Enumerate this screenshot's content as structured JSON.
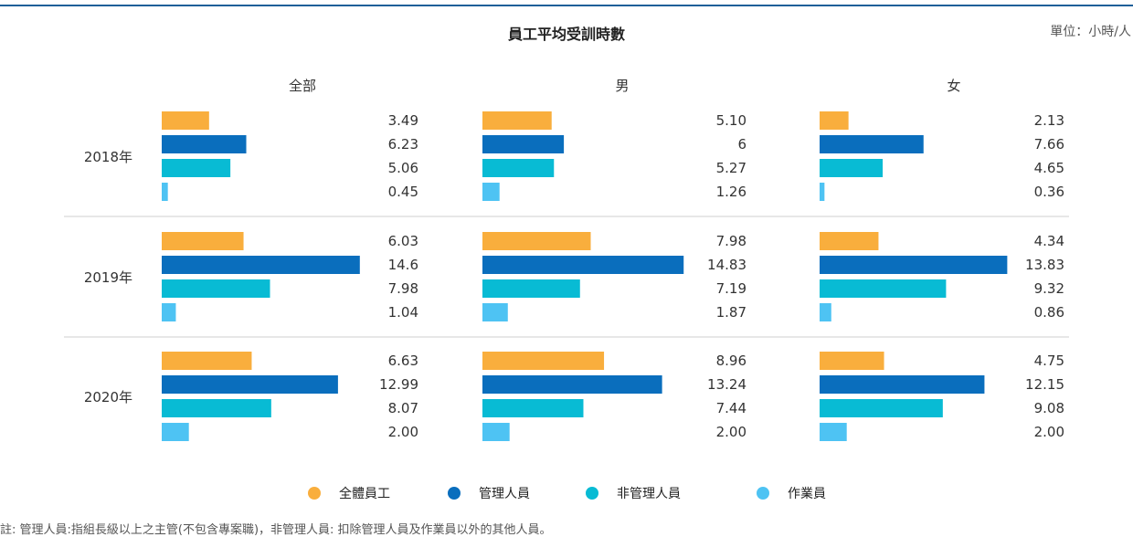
{
  "title": "員工平均受訓時數",
  "unit": "單位：小時/人",
  "footnote": "註: 管理人員:指組長級以上之主管(不包含專案職)，非管理人員: 扣除管理人員及作業員以外的其他人員。",
  "chart_data": {
    "type": "bar",
    "orientation": "horizontal",
    "title": "員工平均受訓時數",
    "unit": "單位：小時/人",
    "panels": [
      "全部",
      "男",
      "女"
    ],
    "groups": [
      "2018年",
      "2019年",
      "2020年"
    ],
    "series": [
      {
        "name": "全體員工",
        "color": "#F9AE3D",
        "labels": [
          [
            "3.49",
            "5.10",
            "2.13"
          ],
          [
            "6.03",
            "7.98",
            "4.34"
          ],
          [
            "6.63",
            "8.96",
            "4.75"
          ]
        ],
        "values": [
          [
            3.49,
            5.1,
            2.13
          ],
          [
            6.03,
            7.98,
            4.34
          ],
          [
            6.63,
            8.96,
            4.75
          ]
        ]
      },
      {
        "name": "管理人員",
        "color": "#0A6EBD",
        "labels": [
          [
            "6.23",
            "6",
            "7.66"
          ],
          [
            "14.6",
            "14.83",
            "13.83"
          ],
          [
            "12.99",
            "13.24",
            "12.15"
          ]
        ],
        "values": [
          [
            6.23,
            6,
            7.66
          ],
          [
            14.6,
            14.83,
            13.83
          ],
          [
            12.99,
            13.24,
            12.15
          ]
        ]
      },
      {
        "name": "非管理人員",
        "color": "#08BBD4",
        "labels": [
          [
            "5.06",
            "5.27",
            "4.65"
          ],
          [
            "7.98",
            "7.19",
            "9.32"
          ],
          [
            "8.07",
            "7.44",
            "9.08"
          ]
        ],
        "values": [
          [
            5.06,
            5.27,
            4.65
          ],
          [
            7.98,
            7.19,
            9.32
          ],
          [
            8.07,
            7.44,
            9.08
          ]
        ]
      },
      {
        "name": "作業員",
        "color": "#4EC3F3",
        "labels": [
          [
            "0.45",
            "1.26",
            "0.36"
          ],
          [
            "1.04",
            "1.87",
            "0.86"
          ],
          [
            "2.00",
            "2.00",
            "2.00"
          ]
        ],
        "values": [
          [
            0.45,
            1.26,
            0.36
          ],
          [
            1.04,
            1.87,
            0.86
          ],
          [
            2.0,
            2.0,
            2.0
          ]
        ]
      }
    ],
    "legend_position": "bottom",
    "grid": false
  }
}
